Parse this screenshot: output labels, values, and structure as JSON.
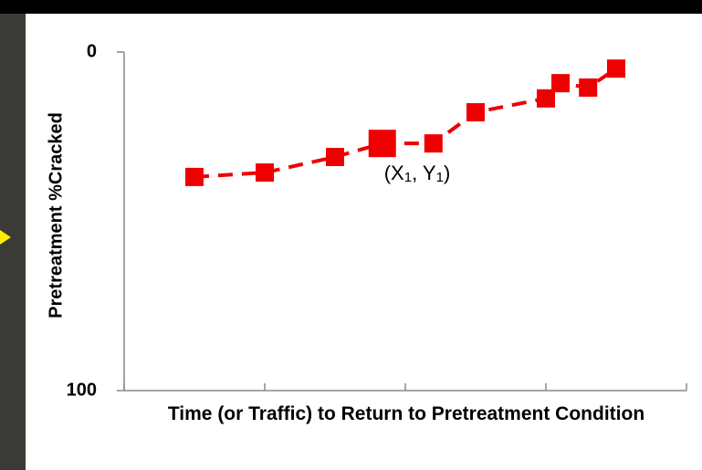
{
  "chart_data": {
    "type": "line",
    "ylabel": "Pretreatment %Cracked",
    "xlabel": "Time (or Traffic) to Return to Pretreatment Condition",
    "x": [
      12.5,
      25,
      37.5,
      45.9,
      55,
      62.5,
      75,
      77.6,
      82.5,
      87.5
    ],
    "series": [
      {
        "color": "#ee0000",
        "values": [
          36.9,
          35.6,
          31,
          27,
          27,
          17.8,
          13.7,
          9.2,
          10.5,
          4.9
        ]
      }
    ],
    "highlight_index": 3,
    "annotation": [
      "(X",
      "1",
      ", Y",
      "1",
      ")"
    ],
    "xlim": [
      0,
      100
    ],
    "xticks": [
      0,
      25,
      50,
      75,
      100
    ],
    "ylim": [
      100,
      0
    ],
    "yticks": [
      0,
      100
    ],
    "line_style": "dashed",
    "grid": false
  }
}
